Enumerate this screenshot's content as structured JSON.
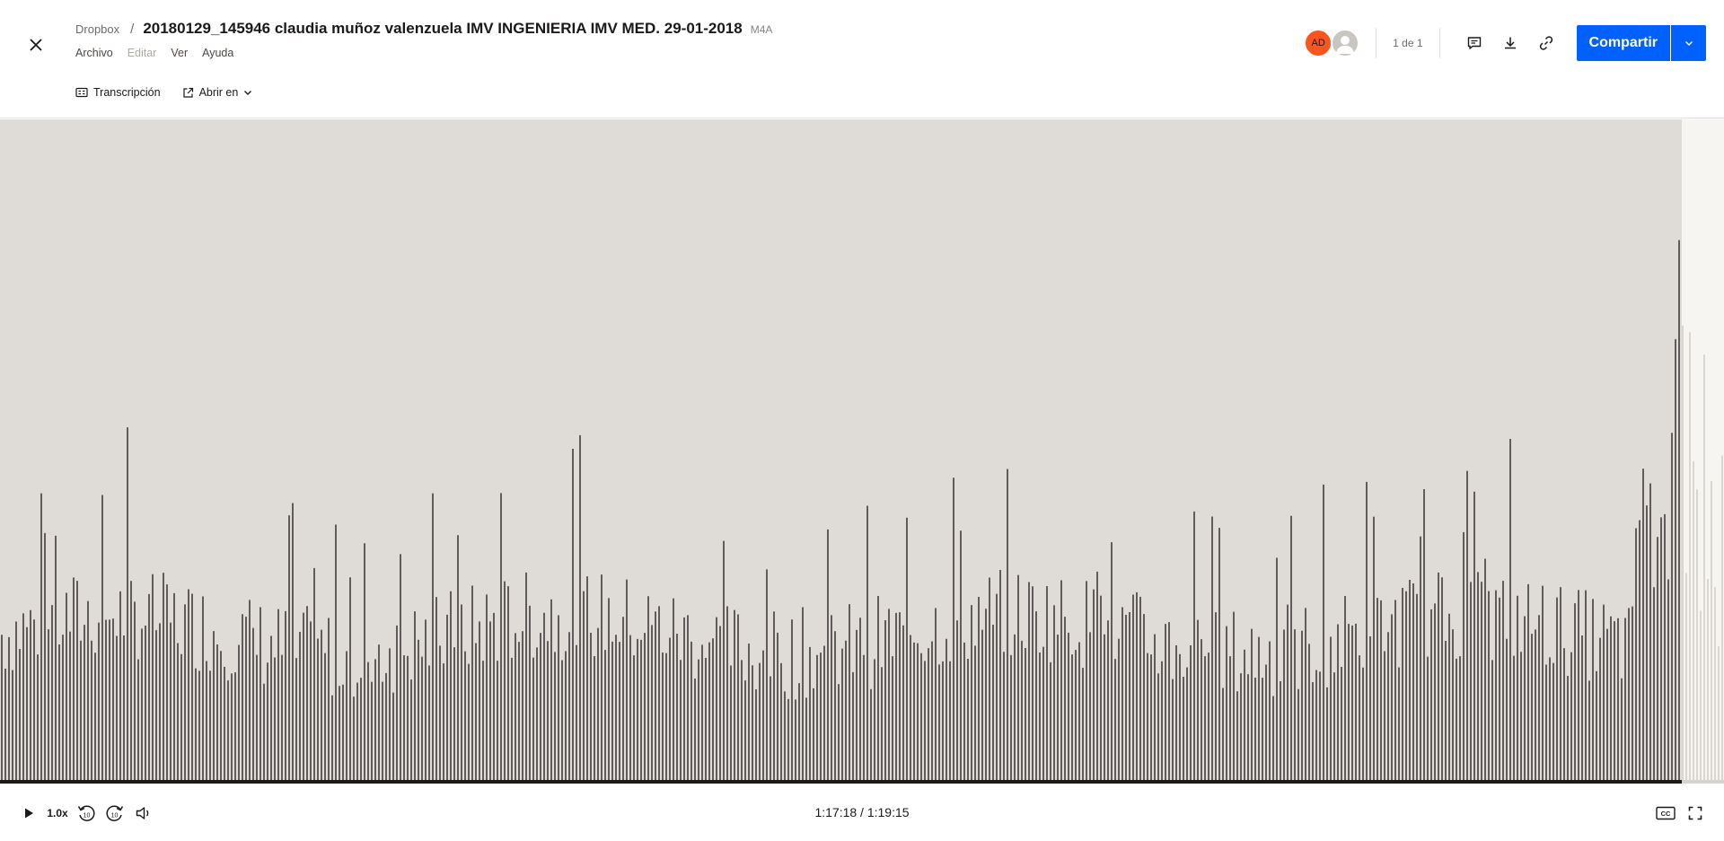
{
  "header": {
    "breadcrumb_root": "Dropbox",
    "breadcrumb_sep": "/",
    "file_title": "20180129_145946 claudia muñoz valenzuela IMV INGENIERIA IMV MED. 29-01-2018",
    "file_ext": "M4A",
    "menu": [
      "Archivo",
      "Editar",
      "Ver",
      "Ayuda"
    ],
    "toolbar": {
      "transcript_label": "Transcripción",
      "open_in_label": "Abrir en"
    },
    "avatar_initials": "AD",
    "page_count": "1 de 1",
    "share_label": "Compartir"
  },
  "player": {
    "speed": "1.0x",
    "skip_back_label": "10",
    "skip_forward_label": "10",
    "current_time": "1:17:18",
    "duration": "1:19:15",
    "time_display": "1:17:18 / 1:19:15",
    "progress_fraction": 0.9754,
    "cc_label": "CC"
  },
  "colors": {
    "accent": "#0061fe",
    "avatar": "#fa551e",
    "waveform_played_bg": "#dfdcd8",
    "waveform_unplayed_bg": "#f7f5f2",
    "bar_played": "#1e1919",
    "bar_unplayed": "#c9c5c1"
  },
  "icons": [
    "close-icon",
    "transcript-icon",
    "external-link-icon",
    "chevron-down-icon",
    "comment-icon",
    "download-icon",
    "link-icon",
    "play-icon",
    "rewind-10-icon",
    "forward-10-icon",
    "volume-icon",
    "captions-icon",
    "fullscreen-icon"
  ]
}
